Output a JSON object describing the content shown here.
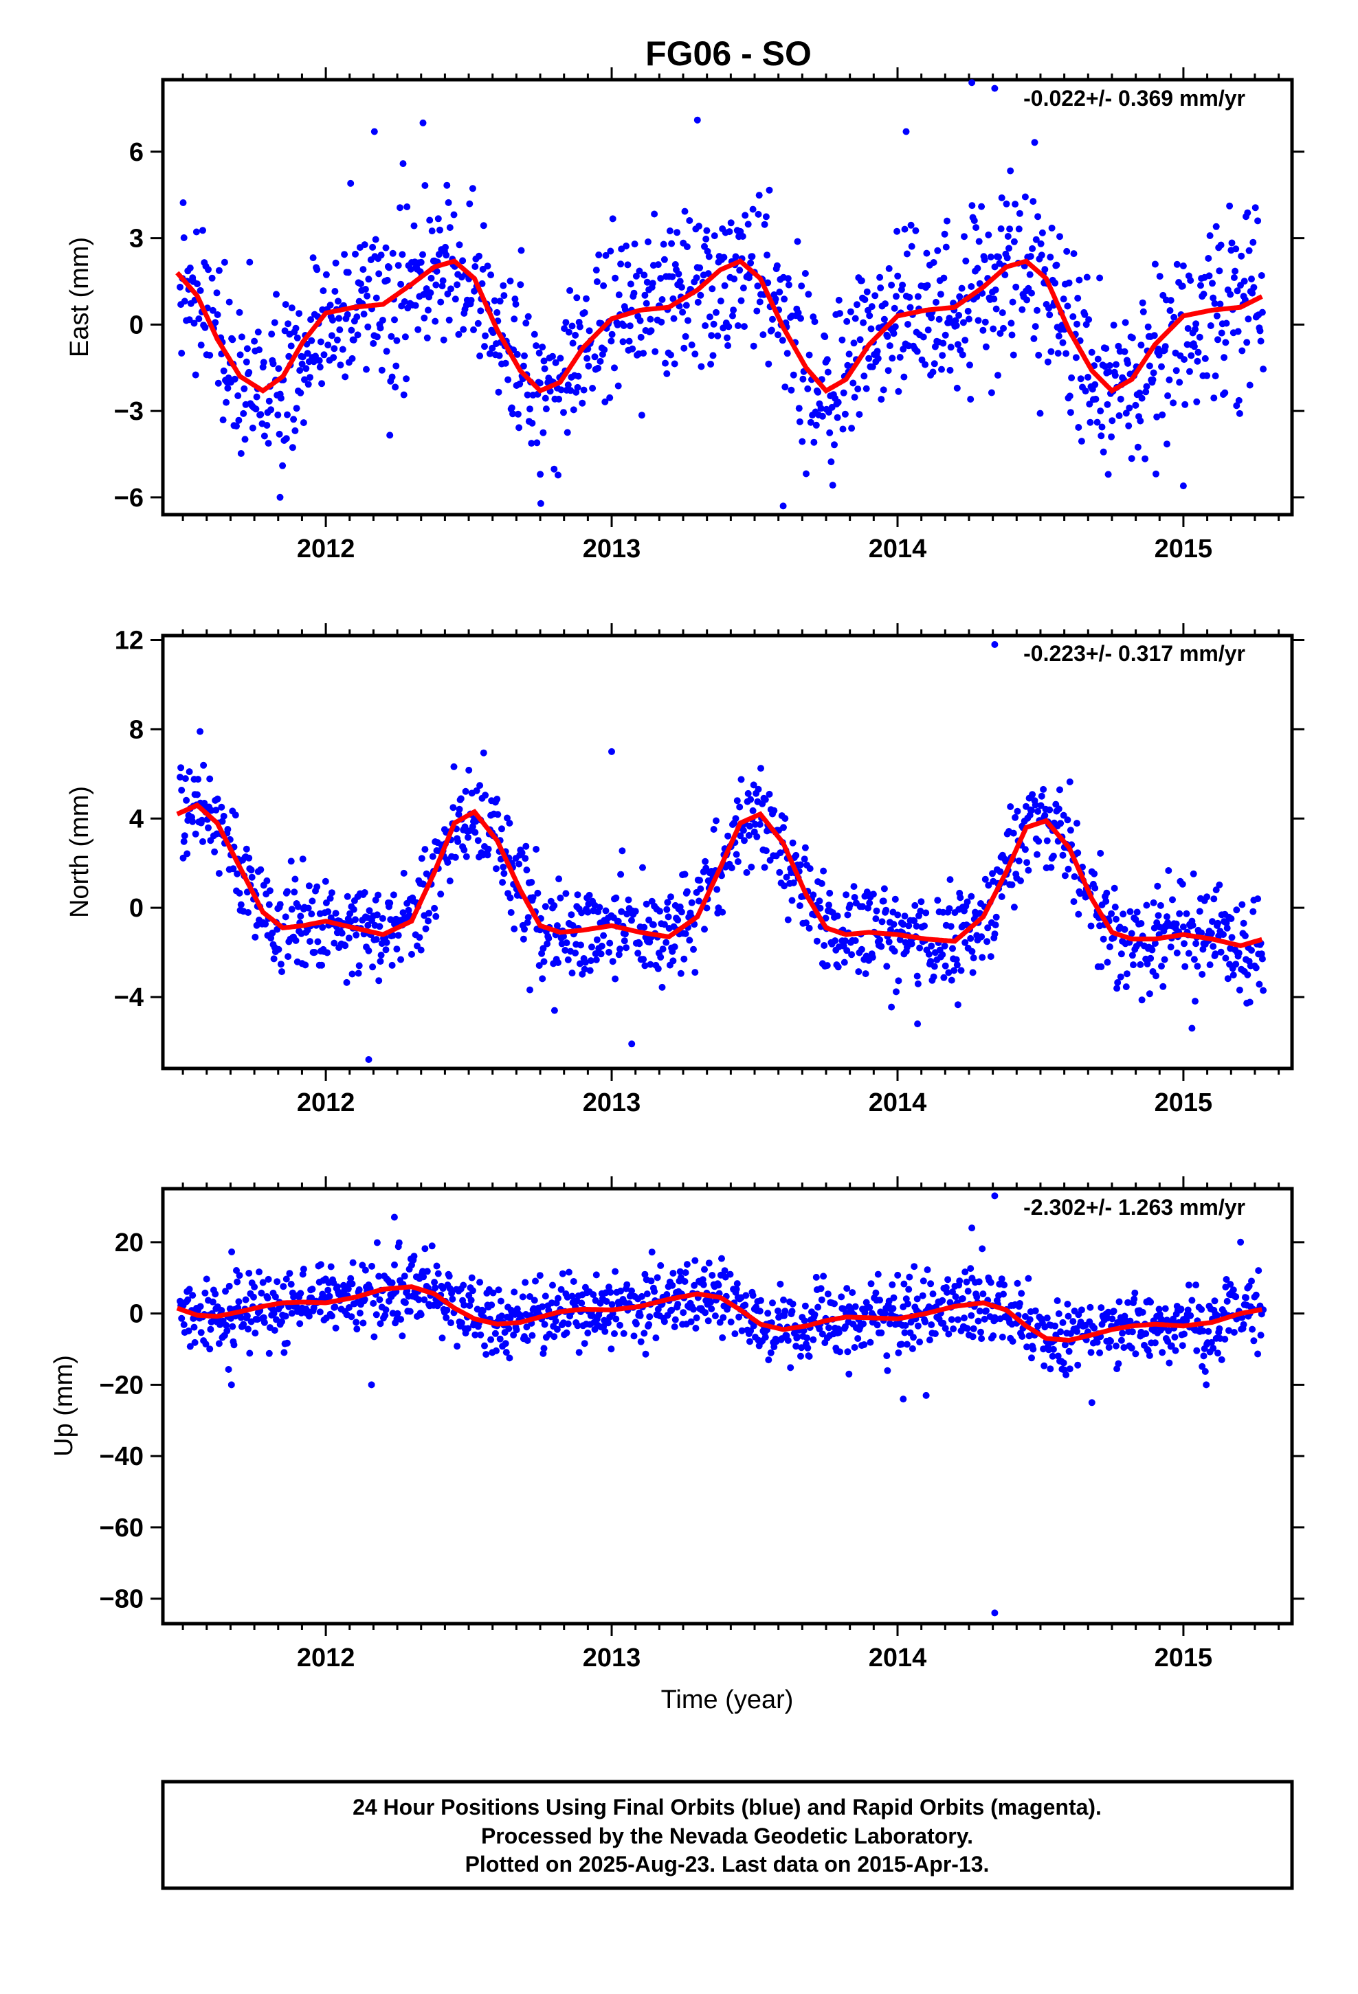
{
  "title": "FG06 - SO",
  "xlabel": "Time (year)",
  "footer": {
    "line1": "24 Hour Positions Using Final Orbits (blue) and Rapid Orbits (magenta).",
    "line2": "Processed by the Nevada Geodetic Laboratory.",
    "line3": "Plotted on 2025-Aug-23. Last data on 2015-Apr-13."
  },
  "colors": {
    "points": "#0000ff",
    "model": "#ff0000",
    "axes": "#000000"
  },
  "chart_data": [
    {
      "type": "scatter",
      "ylabel": "East (mm)",
      "rate_label": "-0.022+/- 0.369 mm/yr",
      "xlim": [
        2011.43,
        2015.38
      ],
      "ylim": [
        -6.6,
        8.5
      ],
      "yticks": [
        -6,
        -3,
        0,
        3,
        6
      ],
      "xticks": [
        2012,
        2013,
        2014,
        2015
      ],
      "series": [
        {
          "kind": "points",
          "sample_times": [
            2011.48,
            2011.55,
            2011.62,
            2011.7,
            2011.78,
            2011.85,
            2011.92,
            2012.0,
            2012.1,
            2012.2,
            2012.3,
            2012.38,
            2012.45,
            2012.52,
            2012.6,
            2012.68,
            2012.75,
            2012.82,
            2012.9,
            2013.0,
            2013.1,
            2013.2,
            2013.3,
            2013.38,
            2013.45,
            2013.52,
            2013.6,
            2013.68,
            2013.75,
            2013.82,
            2013.9,
            2014.0,
            2014.1,
            2014.2,
            2014.3,
            2014.38,
            2014.45,
            2014.52,
            2014.6,
            2014.68,
            2014.75,
            2014.82,
            2014.9,
            2015.0,
            2015.1,
            2015.2,
            2015.28
          ],
          "values": [
            1.8,
            1.0,
            -0.5,
            -1.8,
            -2.3,
            -1.8,
            -0.6,
            0.4,
            0.6,
            0.7,
            1.4,
            2.0,
            2.2,
            1.6,
            -0.2,
            -1.6,
            -2.3,
            -2.0,
            -0.8,
            0.2,
            0.5,
            0.6,
            1.2,
            1.9,
            2.2,
            1.6,
            -0.1,
            -1.5,
            -2.3,
            -1.9,
            -0.7,
            0.3,
            0.5,
            0.6,
            1.3,
            2.0,
            2.2,
            1.6,
            -0.2,
            -1.6,
            -2.3,
            -1.9,
            -0.7,
            0.3,
            0.5,
            0.6,
            1.0
          ]
        },
        {
          "kind": "model",
          "x": [
            2011.48,
            2011.55,
            2011.62,
            2011.7,
            2011.78,
            2011.85,
            2011.92,
            2012.0,
            2012.1,
            2012.2,
            2012.3,
            2012.38,
            2012.45,
            2012.52,
            2012.6,
            2012.68,
            2012.75,
            2012.82,
            2012.9,
            2013.0,
            2013.1,
            2013.2,
            2013.3,
            2013.38,
            2013.45,
            2013.52,
            2013.6,
            2013.68,
            2013.75,
            2013.82,
            2013.9,
            2014.0,
            2014.1,
            2014.2,
            2014.3,
            2014.38,
            2014.45,
            2014.52,
            2014.6,
            2014.68,
            2014.75,
            2014.82,
            2014.9,
            2015.0,
            2015.1,
            2015.2,
            2015.28
          ],
          "y": [
            1.8,
            1.0,
            -0.5,
            -1.8,
            -2.3,
            -1.8,
            -0.6,
            0.4,
            0.6,
            0.7,
            1.4,
            2.0,
            2.2,
            1.6,
            -0.2,
            -1.6,
            -2.3,
            -2.0,
            -0.8,
            0.2,
            0.5,
            0.6,
            1.2,
            1.9,
            2.2,
            1.6,
            -0.1,
            -1.5,
            -2.3,
            -1.9,
            -0.7,
            0.3,
            0.5,
            0.6,
            1.3,
            2.0,
            2.2,
            1.6,
            -0.2,
            -1.6,
            -2.3,
            -1.9,
            -0.7,
            0.3,
            0.5,
            0.6,
            1.0
          ]
        }
      ],
      "scatter_spread": 1.5,
      "outliers": [
        [
          2014.26,
          8.4
        ],
        [
          2014.34,
          8.2
        ],
        [
          2012.34,
          7.0
        ],
        [
          2013.3,
          7.1
        ],
        [
          2012.17,
          6.7
        ],
        [
          2014.03,
          6.7
        ],
        [
          2013.6,
          -6.3
        ],
        [
          2011.84,
          -6.0
        ],
        [
          2015.0,
          -5.6
        ],
        [
          2012.75,
          -5.2
        ]
      ]
    },
    {
      "type": "scatter",
      "ylabel": "North (mm)",
      "rate_label": "-0.223+/- 0.317 mm/yr",
      "xlim": [
        2011.43,
        2015.38
      ],
      "ylim": [
        -7.2,
        12.2
      ],
      "yticks": [
        -4,
        0,
        4,
        8,
        12
      ],
      "xticks": [
        2012,
        2013,
        2014,
        2015
      ],
      "series": [
        {
          "kind": "points",
          "sample_times": [
            2011.48,
            2011.55,
            2011.62,
            2011.7,
            2011.78,
            2011.85,
            2011.92,
            2012.0,
            2012.1,
            2012.2,
            2012.3,
            2012.38,
            2012.45,
            2012.52,
            2012.6,
            2012.68,
            2012.75,
            2012.82,
            2012.9,
            2013.0,
            2013.1,
            2013.2,
            2013.3,
            2013.38,
            2013.45,
            2013.52,
            2013.6,
            2013.68,
            2013.75,
            2013.82,
            2013.9,
            2014.0,
            2014.1,
            2014.2,
            2014.3,
            2014.38,
            2014.45,
            2014.52,
            2014.6,
            2014.68,
            2014.75,
            2014.82,
            2014.9,
            2015.0,
            2015.1,
            2015.2,
            2015.28
          ],
          "values": [
            4.2,
            4.6,
            3.8,
            1.8,
            -0.2,
            -0.9,
            -0.8,
            -0.6,
            -0.9,
            -1.2,
            -0.6,
            1.6,
            3.8,
            4.3,
            3.0,
            0.8,
            -0.8,
            -1.1,
            -1.0,
            -0.8,
            -1.1,
            -1.3,
            -0.4,
            1.8,
            3.8,
            4.2,
            2.9,
            0.6,
            -0.9,
            -1.2,
            -1.1,
            -1.2,
            -1.4,
            -1.5,
            -0.4,
            1.6,
            3.6,
            3.9,
            2.7,
            0.4,
            -1.1,
            -1.4,
            -1.4,
            -1.2,
            -1.4,
            -1.7,
            -1.4
          ]
        },
        {
          "kind": "model",
          "x": [
            2011.48,
            2011.55,
            2011.62,
            2011.7,
            2011.78,
            2011.85,
            2011.92,
            2012.0,
            2012.1,
            2012.2,
            2012.3,
            2012.38,
            2012.45,
            2012.52,
            2012.6,
            2012.68,
            2012.75,
            2012.82,
            2012.9,
            2013.0,
            2013.1,
            2013.2,
            2013.3,
            2013.38,
            2013.45,
            2013.52,
            2013.6,
            2013.68,
            2013.75,
            2013.82,
            2013.9,
            2014.0,
            2014.1,
            2014.2,
            2014.3,
            2014.38,
            2014.45,
            2014.52,
            2014.6,
            2014.68,
            2014.75,
            2014.82,
            2014.9,
            2015.0,
            2015.1,
            2015.2,
            2015.28
          ],
          "y": [
            4.2,
            4.6,
            3.8,
            1.8,
            -0.2,
            -0.9,
            -0.8,
            -0.6,
            -0.9,
            -1.2,
            -0.6,
            1.6,
            3.8,
            4.3,
            3.0,
            0.8,
            -0.8,
            -1.1,
            -1.0,
            -0.8,
            -1.1,
            -1.3,
            -0.4,
            1.8,
            3.8,
            4.2,
            2.9,
            0.6,
            -0.9,
            -1.2,
            -1.1,
            -1.2,
            -1.4,
            -1.5,
            -0.4,
            1.6,
            3.6,
            3.9,
            2.7,
            0.4,
            -1.1,
            -1.4,
            -1.4,
            -1.2,
            -1.4,
            -1.7,
            -1.4
          ]
        }
      ],
      "scatter_spread": 1.1,
      "outliers": [
        [
          2014.34,
          11.8
        ],
        [
          2011.56,
          7.9
        ],
        [
          2013.0,
          7.0
        ],
        [
          2012.15,
          -6.8
        ],
        [
          2013.07,
          -6.1
        ],
        [
          2015.03,
          -5.4
        ],
        [
          2012.8,
          -4.6
        ],
        [
          2014.07,
          -5.2
        ]
      ]
    },
    {
      "type": "scatter",
      "ylabel": "Up (mm)",
      "rate_label": "-2.302+/- 1.263 mm/yr",
      "xlim": [
        2011.43,
        2015.38
      ],
      "ylim": [
        -87,
        35
      ],
      "yticks": [
        -80,
        -60,
        -40,
        -20,
        0,
        20
      ],
      "xticks": [
        2012,
        2013,
        2014,
        2015
      ],
      "series": [
        {
          "kind": "points",
          "sample_times": [
            2011.48,
            2011.55,
            2011.62,
            2011.7,
            2011.78,
            2011.85,
            2011.92,
            2012.0,
            2012.1,
            2012.2,
            2012.3,
            2012.38,
            2012.45,
            2012.52,
            2012.6,
            2012.68,
            2012.75,
            2012.82,
            2012.9,
            2013.0,
            2013.1,
            2013.2,
            2013.3,
            2013.38,
            2013.45,
            2013.52,
            2013.6,
            2013.68,
            2013.75,
            2013.82,
            2013.9,
            2014.0,
            2014.1,
            2014.2,
            2014.3,
            2014.38,
            2014.45,
            2014.52,
            2014.6,
            2014.68,
            2014.75,
            2014.82,
            2014.9,
            2015.0,
            2015.1,
            2015.2,
            2015.28
          ],
          "values": [
            1.5,
            -0.5,
            -0.8,
            0.5,
            2.0,
            3.0,
            3.2,
            3.0,
            4.5,
            6.8,
            7.5,
            5.5,
            1.5,
            -1.5,
            -3.0,
            -2.5,
            -1.0,
            0.5,
            1.2,
            1.0,
            2.0,
            4.0,
            5.5,
            4.5,
            1.0,
            -3.0,
            -4.5,
            -3.5,
            -2.0,
            -1.0,
            -1.2,
            -1.5,
            0.0,
            2.0,
            3.0,
            1.0,
            -3.5,
            -7.0,
            -7.5,
            -6.0,
            -4.5,
            -3.5,
            -3.0,
            -3.5,
            -2.5,
            0.0,
            1.2
          ]
        },
        {
          "kind": "model",
          "x": [
            2011.48,
            2011.55,
            2011.62,
            2011.7,
            2011.78,
            2011.85,
            2011.92,
            2012.0,
            2012.1,
            2012.2,
            2012.3,
            2012.38,
            2012.45,
            2012.52,
            2012.6,
            2012.68,
            2012.75,
            2012.82,
            2012.9,
            2013.0,
            2013.1,
            2013.2,
            2013.3,
            2013.38,
            2013.45,
            2013.52,
            2013.6,
            2013.68,
            2013.75,
            2013.82,
            2013.9,
            2014.0,
            2014.1,
            2014.2,
            2014.3,
            2014.38,
            2014.45,
            2014.52,
            2014.6,
            2014.68,
            2014.75,
            2014.82,
            2014.9,
            2015.0,
            2015.1,
            2015.2,
            2015.28
          ],
          "y": [
            1.5,
            -0.5,
            -0.8,
            0.5,
            2.0,
            3.0,
            3.2,
            3.0,
            4.5,
            6.8,
            7.5,
            5.5,
            1.5,
            -1.5,
            -3.0,
            -2.5,
            -1.0,
            0.5,
            1.2,
            1.0,
            2.0,
            4.0,
            5.5,
            4.5,
            1.0,
            -3.0,
            -4.5,
            -3.5,
            -2.0,
            -1.0,
            -1.2,
            -1.5,
            0.0,
            2.0,
            3.0,
            1.0,
            -3.5,
            -7.0,
            -7.5,
            -6.0,
            -4.5,
            -3.5,
            -3.0,
            -3.5,
            -2.5,
            0.0,
            1.2
          ]
        }
      ],
      "scatter_spread": 5.0,
      "outliers": [
        [
          2014.34,
          -84
        ],
        [
          2014.34,
          33
        ],
        [
          2012.24,
          27
        ],
        [
          2014.26,
          24
        ],
        [
          2012.16,
          -20
        ],
        [
          2011.67,
          -20
        ],
        [
          2014.02,
          -24
        ],
        [
          2014.1,
          -23
        ],
        [
          2014.68,
          -25
        ],
        [
          2015.08,
          -20
        ],
        [
          2013.83,
          -17
        ],
        [
          2015.2,
          20
        ]
      ]
    }
  ]
}
